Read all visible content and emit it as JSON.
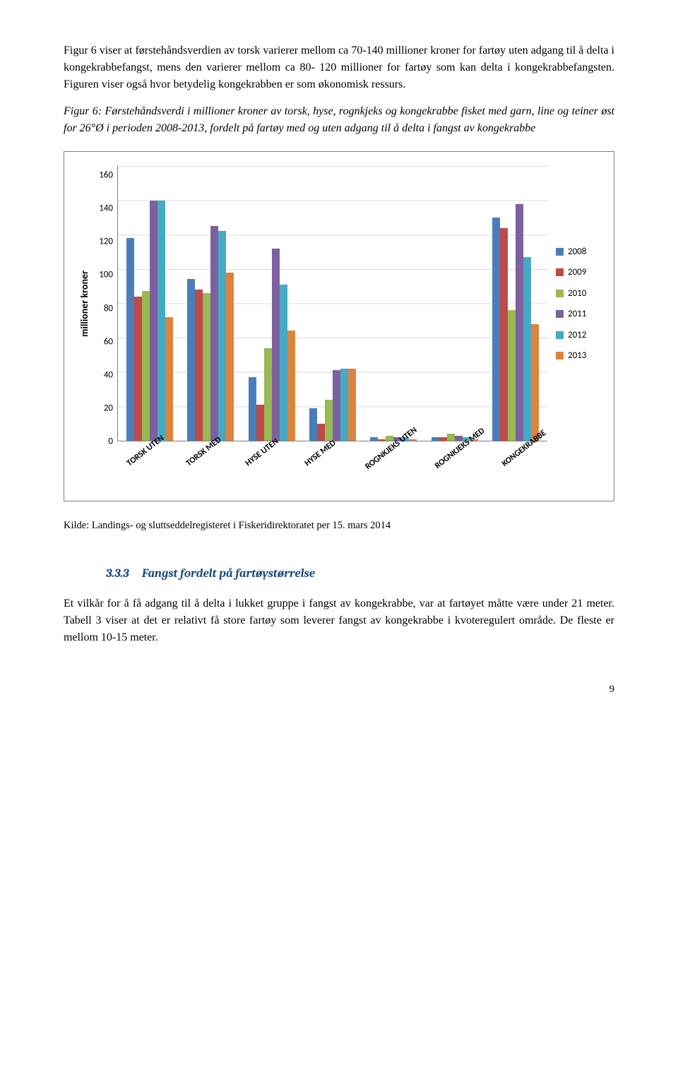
{
  "paragraphs": {
    "p1": "Figur 6 viser at førstehåndsverdien av torsk varierer mellom ca 70-140 millioner kroner for fartøy uten adgang til å delta i kongekrabbefangst, mens den varierer mellom ca 80- 120 millioner for fartøy som kan delta i kongekrabbefangsten. Figuren viser også hvor betydelig kongekrabben er som økonomisk ressurs.",
    "caption": "Figur 6: Førstehåndsverdi i millioner kroner av torsk, hyse, rognkjeks og kongekrabbe fisket med garn, line og teiner øst for 26°Ø i perioden 2008-2013, fordelt på fartøy med og uten adgang til å delta i fangst av kongekrabbe",
    "source": "Kilde: Landings- og sluttseddelregisteret i Fiskeridirektoratet per 15. mars 2014",
    "sec_num": "3.3.3",
    "sec_title": "Fangst fordelt på fartøystørrelse",
    "p2": "Et vilkår for å få adgang til å delta i lukket gruppe i fangst av kongekrabbe, var at fartøyet måtte være under 21 meter. Tabell 3 viser at det er relativt få store fartøy som leverer fangst av kongekrabbe i kvoteregulert område. De fleste er mellom 10-15 meter.",
    "page_num": "9"
  },
  "chart": {
    "type": "bar",
    "ylabel": "millioner kroner",
    "ymax": 160,
    "ytick_step": 20,
    "yticks": [
      "0",
      "20",
      "40",
      "60",
      "80",
      "100",
      "120",
      "140",
      "160"
    ],
    "categories": [
      "TORSK UTEN",
      "TORSK MED",
      "HYSE UTEN",
      "HYSE MED",
      "ROGNKJEKS UTEN",
      "ROGNKJEKS MED",
      "KONGEKRABBE"
    ],
    "series": [
      {
        "name": "2008",
        "color": "#4a7ebb",
        "values": [
          118,
          94,
          37,
          19,
          2,
          2,
          130
        ]
      },
      {
        "name": "2009",
        "color": "#be4b48",
        "values": [
          84,
          88,
          21,
          10,
          1,
          2,
          124
        ]
      },
      {
        "name": "2010",
        "color": "#98b954",
        "values": [
          87,
          86,
          54,
          24,
          3,
          4,
          76
        ]
      },
      {
        "name": "2011",
        "color": "#7d60a0",
        "values": [
          140,
          125,
          112,
          41,
          2,
          3,
          138
        ]
      },
      {
        "name": "2012",
        "color": "#46aac5",
        "values": [
          140,
          122,
          91,
          42,
          2,
          2,
          107
        ]
      },
      {
        "name": "2013",
        "color": "#db843d",
        "values": [
          72,
          98,
          64,
          42,
          1,
          1,
          68
        ]
      }
    ],
    "background_color": "#ffffff",
    "grid_color": "#d9d9d9",
    "axis_color": "#808080",
    "label_fontsize": 13,
    "ylabel_fontsize": 14
  }
}
